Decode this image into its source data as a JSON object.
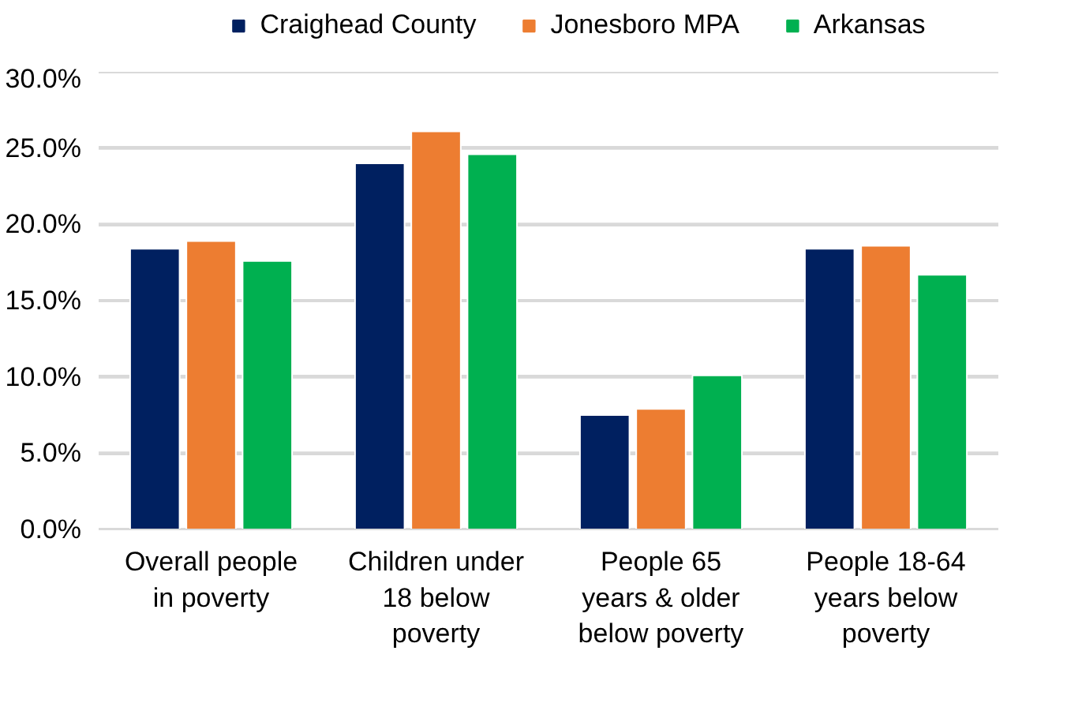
{
  "chart_data": {
    "type": "bar",
    "categories": [
      "Overall people in poverty",
      "Children under 18 below poverty",
      "People 65 years & older below poverty",
      "People 18-64 years below poverty"
    ],
    "series": [
      {
        "name": "Craighead County",
        "color": "#002060",
        "values": [
          18.4,
          24.0,
          7.5,
          18.4
        ]
      },
      {
        "name": "Jonesboro MPA",
        "color": "#ed7d31",
        "values": [
          18.9,
          26.1,
          7.9,
          18.6
        ]
      },
      {
        "name": "Arkansas",
        "color": "#00b050",
        "values": [
          17.6,
          24.6,
          10.1,
          16.7
        ]
      }
    ],
    "ylim": [
      0,
      30
    ],
    "yticks": [
      {
        "value": 0,
        "label": "0.0%"
      },
      {
        "value": 5,
        "label": "5.0%"
      },
      {
        "value": 10,
        "label": "10.0%"
      },
      {
        "value": 15,
        "label": "15.0%"
      },
      {
        "value": 20,
        "label": "20.0%"
      },
      {
        "value": 25,
        "label": "25.0%"
      },
      {
        "value": 30,
        "label": "30.0%"
      }
    ],
    "grid": "y",
    "legend": "top"
  }
}
